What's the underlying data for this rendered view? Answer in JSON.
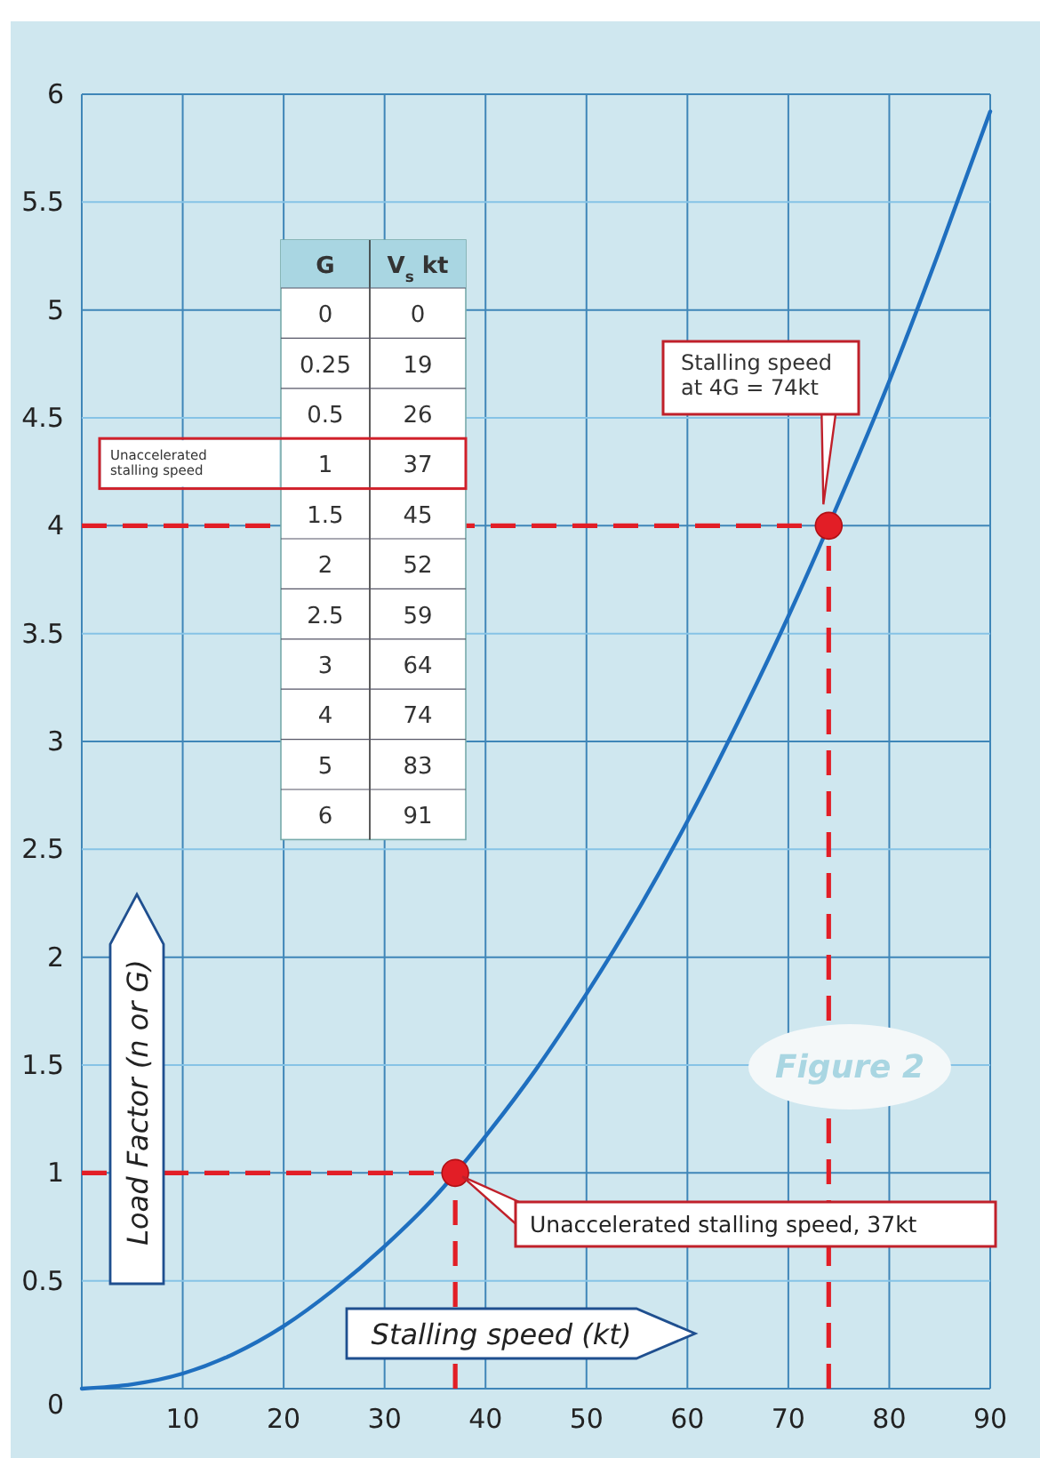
{
  "chart_data": {
    "type": "line",
    "xlabel": "Stalling speed (kt)",
    "ylabel": "Load Factor (n or G)",
    "xlim": [
      0,
      90
    ],
    "ylim": [
      0,
      6
    ],
    "xticks": [
      {
        "value": 0,
        "label": null
      },
      10,
      20,
      30,
      40,
      50,
      60,
      70,
      80,
      90
    ],
    "yticks": [
      0,
      0.5,
      1,
      1.5,
      2,
      2.5,
      3,
      3.5,
      4,
      4.5,
      5,
      5.5,
      6
    ],
    "grid": true,
    "series": [
      {
        "color": "#1f6fbf",
        "x": [
          0,
          5,
          10,
          15,
          20,
          25,
          30,
          35,
          40,
          45,
          50,
          55,
          60,
          65,
          70,
          75,
          80,
          85,
          90
        ],
        "values": [
          0,
          0.02,
          0.07,
          0.16,
          0.29,
          0.46,
          0.66,
          0.89,
          1.17,
          1.48,
          1.83,
          2.21,
          2.63,
          3.09,
          3.58,
          4.11,
          4.67,
          5.28,
          5.92
        ]
      },
      {
        "type": "scatter",
        "color": "#e21e26",
        "marker": "circle",
        "x": [
          37,
          74
        ],
        "values": [
          1,
          4
        ]
      }
    ],
    "ref_lines": [
      {
        "axis": "y",
        "value": 1,
        "color": "#e21e26",
        "line_style": "dashed"
      },
      {
        "axis": "x",
        "value": 37,
        "color": "#e21e26",
        "line_style": "dashed"
      },
      {
        "axis": "y",
        "value": 4,
        "color": "#e21e26",
        "line_style": "dashed"
      },
      {
        "axis": "x",
        "value": 74,
        "color": "#e21e26",
        "line_style": "dashed"
      }
    ],
    "annotations": [
      "Figure 2",
      "Stalling speed\nat 4G = 74kt",
      "Unaccelerated stalling speed, 37kt",
      "Unaccelerated\nstalling speed",
      "G",
      "V$_{s}$ kt",
      "0",
      "0",
      "0.25",
      "19",
      "0.5",
      "26",
      "1",
      "37",
      "1.5",
      "45",
      "2",
      "52",
      "2.5",
      "59",
      "3",
      "64",
      "4",
      "74",
      "5",
      "83",
      "6",
      "91"
    ]
  }
}
